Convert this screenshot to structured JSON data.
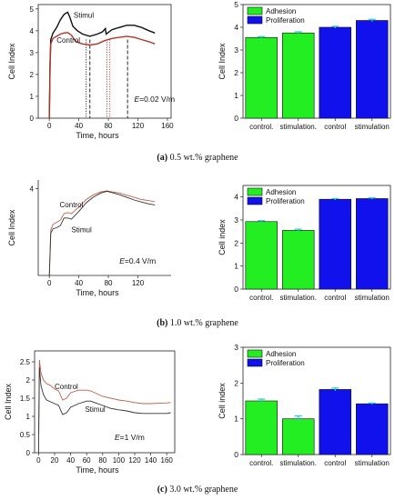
{
  "captions": [
    {
      "letter": "(a)",
      "text": "0.5 wt.% graphene"
    },
    {
      "letter": "(b)",
      "text": "1.0 wt.% graphene"
    },
    {
      "letter": "(c)",
      "text": "3.0 wt.% graphene"
    }
  ],
  "colors": {
    "stimul_a": "#111111",
    "control_a": "#b5342a",
    "control_bc": "#c0604a",
    "stimul_bc": "#333333",
    "adhesion": "#22ee22",
    "proliferation": "#1111ee",
    "errbar": "#22cccc"
  },
  "chart_data": [
    {
      "id": "line-a",
      "type": "line",
      "xlabel": "Time, hours",
      "ylabel": "Cell Index",
      "xlim": [
        -15,
        165
      ],
      "ylim": [
        0,
        5.2
      ],
      "xticks": [
        0,
        40,
        80,
        120,
        160
      ],
      "yticks": [
        0,
        1,
        2,
        3,
        4,
        5
      ],
      "annotation": "E=0.02 V/m",
      "vlines": [
        {
          "x": 50,
          "style": "dotted-black"
        },
        {
          "x": 55,
          "style": "dashed-black"
        },
        {
          "x": 78,
          "style": "dotted-red"
        },
        {
          "x": 82,
          "style": "dotted-red"
        },
        {
          "x": 106,
          "style": "dashed-black"
        }
      ],
      "series": [
        {
          "name": "Stimul",
          "x": [
            0,
            1,
            2,
            5,
            10,
            15,
            20,
            25,
            28,
            32,
            38,
            45,
            55,
            65,
            72,
            76,
            77,
            79,
            85,
            95,
            105,
            115,
            125,
            135,
            143
          ],
          "y": [
            0,
            2.5,
            3.6,
            3.9,
            4.15,
            4.5,
            4.75,
            4.85,
            4.6,
            4.2,
            4.0,
            3.85,
            3.75,
            3.85,
            3.95,
            4.1,
            3.85,
            3.9,
            4.05,
            4.15,
            4.25,
            4.25,
            4.15,
            4.0,
            3.9
          ]
        },
        {
          "name": "Control",
          "x": [
            0,
            1,
            2,
            5,
            10,
            15,
            20,
            25,
            30,
            35,
            40,
            45,
            55,
            65,
            75,
            85,
            95,
            105,
            115,
            125,
            135,
            143
          ],
          "y": [
            0,
            2.4,
            3.4,
            3.65,
            3.75,
            3.85,
            3.9,
            3.92,
            3.8,
            3.55,
            3.45,
            3.4,
            3.35,
            3.4,
            3.55,
            3.65,
            3.7,
            3.75,
            3.7,
            3.6,
            3.5,
            3.4
          ]
        }
      ]
    },
    {
      "id": "bar-a",
      "type": "bar",
      "ylabel": "Cell Index",
      "ylim": [
        0,
        5
      ],
      "yticks": [
        0,
        1,
        2,
        3,
        4,
        5
      ],
      "categories": [
        "control.",
        "stimulation.",
        "control",
        "stimulation"
      ],
      "values": [
        3.55,
        3.75,
        4.0,
        4.3
      ],
      "errors": [
        0.04,
        0.05,
        0.04,
        0.05
      ],
      "groups": [
        "adhesion",
        "adhesion",
        "proliferation",
        "proliferation"
      ],
      "legend": [
        "Adhesion",
        "Proliferation"
      ]
    },
    {
      "id": "line-b",
      "type": "line",
      "xlabel": "Time, hours",
      "ylabel": "Cell Index",
      "xlim": [
        -15,
        165
      ],
      "ylim": [
        0,
        4.4
      ],
      "xticks": [
        0,
        40,
        80,
        120
      ],
      "yticks": [
        4
      ],
      "annotation": "E=0.4 V/m",
      "series": [
        {
          "name": "Control",
          "x": [
            0,
            2,
            5,
            10,
            15,
            20,
            25,
            30,
            40,
            50,
            60,
            70,
            78,
            85,
            95,
            105,
            115,
            125,
            135,
            143
          ],
          "y": [
            0,
            2.1,
            2.35,
            2.45,
            2.55,
            2.85,
            2.9,
            2.85,
            3.15,
            3.5,
            3.72,
            3.85,
            3.9,
            3.85,
            3.8,
            3.7,
            3.6,
            3.5,
            3.45,
            3.4
          ]
        },
        {
          "name": "Stimul",
          "x": [
            0,
            2,
            5,
            10,
            15,
            20,
            25,
            30,
            40,
            50,
            60,
            70,
            78,
            85,
            95,
            105,
            115,
            125,
            135,
            143
          ],
          "y": [
            0,
            1.95,
            2.15,
            2.2,
            2.3,
            2.65,
            2.65,
            2.6,
            2.95,
            3.35,
            3.62,
            3.8,
            3.88,
            3.82,
            3.72,
            3.6,
            3.48,
            3.38,
            3.3,
            3.25
          ]
        }
      ]
    },
    {
      "id": "bar-b",
      "type": "bar",
      "ylabel": "Cell index",
      "ylim": [
        0,
        4.5
      ],
      "yticks": [
        0,
        1,
        2,
        3,
        4
      ],
      "categories": [
        "control.",
        "stimulation.",
        "control",
        "stimulation"
      ],
      "values": [
        2.93,
        2.55,
        3.9,
        3.93
      ],
      "errors": [
        0.04,
        0.05,
        0.03,
        0.03
      ],
      "groups": [
        "adhesion",
        "adhesion",
        "proliferation",
        "proliferation"
      ],
      "legend": [
        "Adhesion",
        "Proliferation"
      ]
    },
    {
      "id": "line-c",
      "type": "line",
      "xlabel": "Time, hours",
      "ylabel": "Cell Index",
      "xlim": [
        -5,
        170
      ],
      "ylim": [
        0,
        2.8
      ],
      "xticks": [
        0,
        20,
        40,
        60,
        80,
        100,
        120,
        140,
        160
      ],
      "yticks": [
        0,
        0.5,
        1.0,
        1.5,
        2.0,
        2.5
      ],
      "annotation": "E=1 V/m",
      "series": [
        {
          "name": "Control",
          "x": [
            0,
            1,
            3,
            6,
            10,
            15,
            20,
            25,
            30,
            35,
            40,
            50,
            60,
            65,
            70,
            80,
            90,
            100,
            110,
            120,
            130,
            140,
            150,
            160,
            165
          ],
          "y": [
            0.5,
            2.55,
            2.2,
            2.0,
            1.9,
            1.85,
            1.75,
            1.7,
            1.45,
            1.5,
            1.65,
            1.72,
            1.72,
            1.7,
            1.65,
            1.55,
            1.5,
            1.45,
            1.42,
            1.38,
            1.35,
            1.35,
            1.36,
            1.37,
            1.38
          ]
        },
        {
          "name": "Stimul",
          "x": [
            0,
            1,
            3,
            6,
            10,
            15,
            20,
            25,
            30,
            35,
            40,
            50,
            60,
            65,
            70,
            80,
            90,
            100,
            110,
            120,
            130,
            140,
            150,
            160,
            165
          ],
          "y": [
            0.0,
            2.35,
            1.85,
            1.6,
            1.45,
            1.4,
            1.35,
            1.3,
            1.05,
            1.1,
            1.25,
            1.35,
            1.42,
            1.42,
            1.38,
            1.3,
            1.22,
            1.18,
            1.15,
            1.1,
            1.08,
            1.08,
            1.08,
            1.08,
            1.1
          ]
        }
      ]
    },
    {
      "id": "bar-c",
      "type": "bar",
      "ylabel": "Cell index",
      "ylim": [
        0,
        3
      ],
      "yticks": [
        0,
        1,
        2,
        3
      ],
      "categories": [
        "control.",
        "stimulation.",
        "control",
        "stimulation"
      ],
      "values": [
        1.5,
        1.0,
        1.82,
        1.42
      ],
      "errors": [
        0.05,
        0.08,
        0.04,
        0.02
      ],
      "groups": [
        "adhesion",
        "adhesion",
        "proliferation",
        "proliferation"
      ],
      "legend": [
        "Adhesion",
        "Proliferation"
      ]
    }
  ]
}
